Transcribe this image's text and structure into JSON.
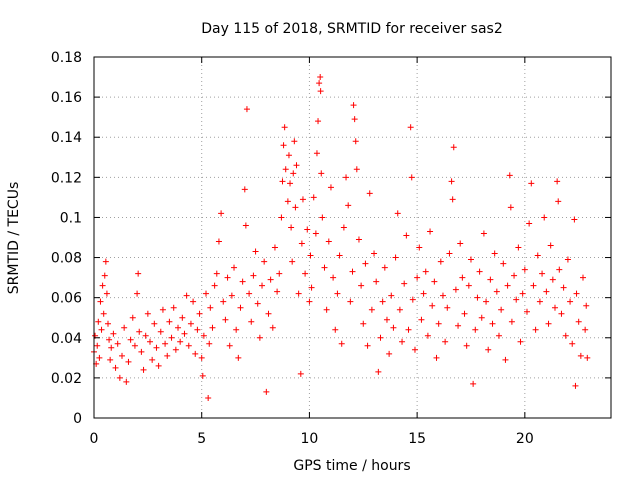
{
  "chart_data": {
    "type": "scatter",
    "title": "Day 115 of 2018, SRMTID for receiver sas2",
    "xlabel": "GPS time / hours",
    "ylabel": "SRMTID / TECUs",
    "xlim": [
      0,
      24
    ],
    "ylim": [
      0,
      0.18
    ],
    "xticks": [
      0,
      5,
      10,
      15,
      20
    ],
    "xtick_labels": [
      "0",
      "5",
      "10",
      "15",
      "20"
    ],
    "yticks": [
      0,
      0.02,
      0.04,
      0.06,
      0.08,
      0.1,
      0.12,
      0.14,
      0.16,
      0.18
    ],
    "ytick_labels": [
      "0",
      "0.02",
      "0.04",
      "0.06",
      "0.08",
      "0.1",
      "0.12",
      "0.14",
      "0.16",
      "0.18"
    ],
    "grid": true,
    "marker": "+",
    "color": "#ff0000",
    "series": [
      {
        "name": "SRMTID",
        "points": [
          [
            0.0,
            0.033
          ],
          [
            0.05,
            0.041
          ],
          [
            0.1,
            0.027
          ],
          [
            0.15,
            0.036
          ],
          [
            0.2,
            0.048
          ],
          [
            0.25,
            0.03
          ],
          [
            0.3,
            0.058
          ],
          [
            0.35,
            0.044
          ],
          [
            0.4,
            0.066
          ],
          [
            0.45,
            0.052
          ],
          [
            0.5,
            0.071
          ],
          [
            0.55,
            0.078
          ],
          [
            0.6,
            0.062
          ],
          [
            0.65,
            0.047
          ],
          [
            0.7,
            0.039
          ],
          [
            0.75,
            0.029
          ],
          [
            0.8,
            0.035
          ],
          [
            0.9,
            0.042
          ],
          [
            1.0,
            0.025
          ],
          [
            1.1,
            0.037
          ],
          [
            1.2,
            0.02
          ],
          [
            1.3,
            0.031
          ],
          [
            1.4,
            0.045
          ],
          [
            1.5,
            0.018
          ],
          [
            1.6,
            0.028
          ],
          [
            1.7,
            0.039
          ],
          [
            1.8,
            0.05
          ],
          [
            1.9,
            0.036
          ],
          [
            2.0,
            0.062
          ],
          [
            2.05,
            0.072
          ],
          [
            2.1,
            0.043
          ],
          [
            2.2,
            0.033
          ],
          [
            2.3,
            0.024
          ],
          [
            2.4,
            0.041
          ],
          [
            2.5,
            0.052
          ],
          [
            2.6,
            0.038
          ],
          [
            2.7,
            0.029
          ],
          [
            2.8,
            0.047
          ],
          [
            2.9,
            0.035
          ],
          [
            3.0,
            0.026
          ],
          [
            3.1,
            0.043
          ],
          [
            3.2,
            0.054
          ],
          [
            3.3,
            0.037
          ],
          [
            3.4,
            0.031
          ],
          [
            3.5,
            0.048
          ],
          [
            3.6,
            0.04
          ],
          [
            3.7,
            0.055
          ],
          [
            3.8,
            0.034
          ],
          [
            3.9,
            0.045
          ],
          [
            4.0,
            0.038
          ],
          [
            4.1,
            0.05
          ],
          [
            4.2,
            0.042
          ],
          [
            4.3,
            0.061
          ],
          [
            4.4,
            0.036
          ],
          [
            4.5,
            0.047
          ],
          [
            4.6,
            0.058
          ],
          [
            4.7,
            0.032
          ],
          [
            4.8,
            0.044
          ],
          [
            4.9,
            0.052
          ],
          [
            5.0,
            0.03
          ],
          [
            5.05,
            0.021
          ],
          [
            5.1,
            0.041
          ],
          [
            5.2,
            0.062
          ],
          [
            5.3,
            0.01
          ],
          [
            5.35,
            0.037
          ],
          [
            5.4,
            0.055
          ],
          [
            5.5,
            0.045
          ],
          [
            5.6,
            0.066
          ],
          [
            5.7,
            0.072
          ],
          [
            5.8,
            0.088
          ],
          [
            5.9,
            0.102
          ],
          [
            6.0,
            0.058
          ],
          [
            6.1,
            0.049
          ],
          [
            6.2,
            0.07
          ],
          [
            6.3,
            0.036
          ],
          [
            6.4,
            0.061
          ],
          [
            6.5,
            0.075
          ],
          [
            6.6,
            0.044
          ],
          [
            6.7,
            0.03
          ],
          [
            6.8,
            0.055
          ],
          [
            6.9,
            0.068
          ],
          [
            7.0,
            0.114
          ],
          [
            7.05,
            0.096
          ],
          [
            7.1,
            0.154
          ],
          [
            7.2,
            0.062
          ],
          [
            7.3,
            0.048
          ],
          [
            7.4,
            0.071
          ],
          [
            7.5,
            0.083
          ],
          [
            7.6,
            0.057
          ],
          [
            7.7,
            0.04
          ],
          [
            7.8,
            0.066
          ],
          [
            7.9,
            0.078
          ],
          [
            8.0,
            0.013
          ],
          [
            8.1,
            0.052
          ],
          [
            8.2,
            0.069
          ],
          [
            8.3,
            0.045
          ],
          [
            8.4,
            0.085
          ],
          [
            8.5,
            0.063
          ],
          [
            8.6,
            0.072
          ],
          [
            8.7,
            0.1
          ],
          [
            8.75,
            0.118
          ],
          [
            8.8,
            0.136
          ],
          [
            8.85,
            0.145
          ],
          [
            8.9,
            0.124
          ],
          [
            9.0,
            0.108
          ],
          [
            9.05,
            0.131
          ],
          [
            9.1,
            0.117
          ],
          [
            9.15,
            0.095
          ],
          [
            9.2,
            0.078
          ],
          [
            9.25,
            0.122
          ],
          [
            9.3,
            0.138
          ],
          [
            9.35,
            0.105
          ],
          [
            9.4,
            0.126
          ],
          [
            9.5,
            0.062
          ],
          [
            9.6,
            0.022
          ],
          [
            9.65,
            0.087
          ],
          [
            9.7,
            0.109
          ],
          [
            9.8,
            0.072
          ],
          [
            9.9,
            0.094
          ],
          [
            10.0,
            0.058
          ],
          [
            10.05,
            0.081
          ],
          [
            10.1,
            0.065
          ],
          [
            10.2,
            0.11
          ],
          [
            10.3,
            0.092
          ],
          [
            10.35,
            0.132
          ],
          [
            10.4,
            0.148
          ],
          [
            10.45,
            0.167
          ],
          [
            10.5,
            0.17
          ],
          [
            10.52,
            0.163
          ],
          [
            10.55,
            0.122
          ],
          [
            10.6,
            0.1
          ],
          [
            10.7,
            0.075
          ],
          [
            10.8,
            0.054
          ],
          [
            10.9,
            0.088
          ],
          [
            11.0,
            0.115
          ],
          [
            11.1,
            0.07
          ],
          [
            11.2,
            0.044
          ],
          [
            11.3,
            0.062
          ],
          [
            11.4,
            0.081
          ],
          [
            11.5,
            0.037
          ],
          [
            11.6,
            0.095
          ],
          [
            11.7,
            0.12
          ],
          [
            11.8,
            0.106
          ],
          [
            11.9,
            0.058
          ],
          [
            12.0,
            0.073
          ],
          [
            12.05,
            0.156
          ],
          [
            12.1,
            0.149
          ],
          [
            12.15,
            0.138
          ],
          [
            12.2,
            0.124
          ],
          [
            12.3,
            0.089
          ],
          [
            12.4,
            0.066
          ],
          [
            12.5,
            0.047
          ],
          [
            12.6,
            0.077
          ],
          [
            12.7,
            0.036
          ],
          [
            12.8,
            0.112
          ],
          [
            12.9,
            0.054
          ],
          [
            13.0,
            0.082
          ],
          [
            13.1,
            0.068
          ],
          [
            13.2,
            0.023
          ],
          [
            13.3,
            0.04
          ],
          [
            13.4,
            0.058
          ],
          [
            13.5,
            0.075
          ],
          [
            13.6,
            0.049
          ],
          [
            13.7,
            0.032
          ],
          [
            13.8,
            0.061
          ],
          [
            13.9,
            0.045
          ],
          [
            14.0,
            0.08
          ],
          [
            14.1,
            0.102
          ],
          [
            14.2,
            0.054
          ],
          [
            14.3,
            0.038
          ],
          [
            14.4,
            0.067
          ],
          [
            14.5,
            0.091
          ],
          [
            14.6,
            0.044
          ],
          [
            14.7,
            0.145
          ],
          [
            14.75,
            0.12
          ],
          [
            14.8,
            0.059
          ],
          [
            14.9,
            0.034
          ],
          [
            15.0,
            0.07
          ],
          [
            15.1,
            0.085
          ],
          [
            15.2,
            0.049
          ],
          [
            15.3,
            0.062
          ],
          [
            15.4,
            0.073
          ],
          [
            15.5,
            0.041
          ],
          [
            15.6,
            0.093
          ],
          [
            15.7,
            0.056
          ],
          [
            15.8,
            0.068
          ],
          [
            15.9,
            0.03
          ],
          [
            16.0,
            0.047
          ],
          [
            16.1,
            0.078
          ],
          [
            16.2,
            0.061
          ],
          [
            16.3,
            0.038
          ],
          [
            16.4,
            0.055
          ],
          [
            16.5,
            0.082
          ],
          [
            16.6,
            0.118
          ],
          [
            16.65,
            0.109
          ],
          [
            16.7,
            0.135
          ],
          [
            16.8,
            0.064
          ],
          [
            16.9,
            0.046
          ],
          [
            17.0,
            0.087
          ],
          [
            17.1,
            0.07
          ],
          [
            17.2,
            0.052
          ],
          [
            17.3,
            0.036
          ],
          [
            17.4,
            0.066
          ],
          [
            17.5,
            0.079
          ],
          [
            17.6,
            0.017
          ],
          [
            17.7,
            0.044
          ],
          [
            17.8,
            0.06
          ],
          [
            17.9,
            0.073
          ],
          [
            18.0,
            0.05
          ],
          [
            18.1,
            0.092
          ],
          [
            18.2,
            0.058
          ],
          [
            18.3,
            0.034
          ],
          [
            18.4,
            0.069
          ],
          [
            18.5,
            0.047
          ],
          [
            18.6,
            0.082
          ],
          [
            18.7,
            0.063
          ],
          [
            18.8,
            0.041
          ],
          [
            18.9,
            0.054
          ],
          [
            19.0,
            0.077
          ],
          [
            19.1,
            0.029
          ],
          [
            19.2,
            0.066
          ],
          [
            19.3,
            0.121
          ],
          [
            19.35,
            0.105
          ],
          [
            19.4,
            0.048
          ],
          [
            19.5,
            0.071
          ],
          [
            19.6,
            0.059
          ],
          [
            19.7,
            0.085
          ],
          [
            19.8,
            0.038
          ],
          [
            19.9,
            0.062
          ],
          [
            20.0,
            0.074
          ],
          [
            20.1,
            0.053
          ],
          [
            20.2,
            0.097
          ],
          [
            20.3,
            0.117
          ],
          [
            20.4,
            0.066
          ],
          [
            20.5,
            0.044
          ],
          [
            20.6,
            0.081
          ],
          [
            20.7,
            0.058
          ],
          [
            20.8,
            0.072
          ],
          [
            20.9,
            0.1
          ],
          [
            21.0,
            0.063
          ],
          [
            21.1,
            0.047
          ],
          [
            21.2,
            0.086
          ],
          [
            21.3,
            0.069
          ],
          [
            21.4,
            0.055
          ],
          [
            21.5,
            0.118
          ],
          [
            21.55,
            0.108
          ],
          [
            21.6,
            0.074
          ],
          [
            21.7,
            0.052
          ],
          [
            21.8,
            0.065
          ],
          [
            21.9,
            0.041
          ],
          [
            22.0,
            0.079
          ],
          [
            22.1,
            0.058
          ],
          [
            22.2,
            0.037
          ],
          [
            22.3,
            0.099
          ],
          [
            22.35,
            0.016
          ],
          [
            22.4,
            0.062
          ],
          [
            22.5,
            0.048
          ],
          [
            22.6,
            0.031
          ],
          [
            22.7,
            0.07
          ],
          [
            22.8,
            0.044
          ],
          [
            22.85,
            0.056
          ],
          [
            22.9,
            0.03
          ]
        ]
      }
    ]
  }
}
